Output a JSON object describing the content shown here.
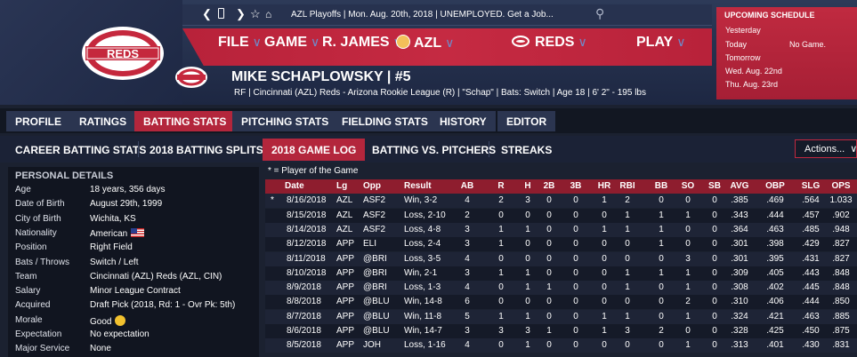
{
  "topbar": {
    "status": "AZL Playoffs  |  Mon. Aug. 20th, 2018  |  UNEMPLOYED. Get a Job..."
  },
  "menu": {
    "file": "FILE",
    "game": "GAME",
    "manager": "R. JAMES",
    "league": "AZL",
    "team": "REDS",
    "play": "PLAY"
  },
  "logo_text": "REDS",
  "player": {
    "name": "MIKE SCHAPLOWSKY  |  #5",
    "info": "RF | Cincinnati (AZL) Reds - Arizona Rookie League (R) | \"Schap\" | Bats: Switch | Age 18 | 6' 2\" - 195 lbs"
  },
  "schedule": {
    "title": "UPCOMING SCHEDULE",
    "rows": [
      "Yesterday",
      "Today",
      "Tomorrow",
      "Wed. Aug. 22nd",
      "Thu. Aug. 23rd"
    ],
    "today_result": "No Game."
  },
  "tabs_main": [
    "PROFILE",
    "RATINGS",
    "BATTING STATS",
    "PITCHING STATS",
    "FIELDING STATS",
    "HISTORY",
    "EDITOR"
  ],
  "tabs_sub": [
    "CAREER BATTING STATS",
    "2018 BATTING SPLITS",
    "2018 GAME LOG",
    "BATTING VS. PITCHERS",
    "STREAKS"
  ],
  "actions_label": "Actions...",
  "details": {
    "title": "PERSONAL DETAILS",
    "rows": [
      {
        "label": "Age",
        "value": "18 years, 356 days"
      },
      {
        "label": "Date of Birth",
        "value": "August 29th, 1999"
      },
      {
        "label": "City of Birth",
        "value": "Wichita, KS"
      },
      {
        "label": "Nationality",
        "value": "American"
      },
      {
        "label": "Position",
        "value": "Right Field"
      },
      {
        "label": "Bats / Throws",
        "value": "Switch / Left"
      },
      {
        "label": "Team",
        "value": "Cincinnati (AZL) Reds (AZL, CIN)"
      },
      {
        "label": "Salary",
        "value": "Minor League Contract"
      },
      {
        "label": "Acquired",
        "value": "Draft Pick (2018, Rd: 1 - Ovr Pk: 5th)"
      },
      {
        "label": "Morale",
        "value": "Good"
      },
      {
        "label": "Expectation",
        "value": "No expectation"
      },
      {
        "label": "Major Service",
        "value": "None"
      }
    ]
  },
  "log": {
    "legend": "* = Player of the Game",
    "columns": [
      "Date",
      "Lg",
      "Opp",
      "Result",
      "AB",
      "R",
      "H",
      "2B",
      "3B",
      "HR",
      "RBI",
      "BB",
      "SO",
      "SB",
      "AVG",
      "OBP",
      "SLG",
      "OPS"
    ],
    "rows": [
      [
        "8/16/2018",
        "AZL",
        "ASF2",
        "Win, 3-2",
        "4",
        "2",
        "3",
        "0",
        "0",
        "1",
        "2",
        "0",
        "0",
        "0",
        ".385",
        ".469",
        ".564",
        "1.033"
      ],
      [
        "8/15/2018",
        "AZL",
        "ASF2",
        "Loss, 2-10",
        "2",
        "0",
        "0",
        "0",
        "0",
        "0",
        "1",
        "1",
        "1",
        "0",
        ".343",
        ".444",
        ".457",
        ".902"
      ],
      [
        "8/14/2018",
        "AZL",
        "ASF2",
        "Loss, 4-8",
        "3",
        "1",
        "1",
        "0",
        "0",
        "1",
        "1",
        "1",
        "0",
        "0",
        ".364",
        ".463",
        ".485",
        ".948"
      ],
      [
        "8/12/2018",
        "APP",
        "ELI",
        "Loss, 2-4",
        "3",
        "1",
        "0",
        "0",
        "0",
        "0",
        "0",
        "1",
        "0",
        "0",
        ".301",
        ".398",
        ".429",
        ".827"
      ],
      [
        "8/11/2018",
        "APP",
        "@BRI",
        "Loss, 3-5",
        "4",
        "0",
        "0",
        "0",
        "0",
        "0",
        "0",
        "0",
        "3",
        "0",
        ".301",
        ".395",
        ".431",
        ".827"
      ],
      [
        "8/10/2018",
        "APP",
        "@BRI",
        "Win, 2-1",
        "3",
        "1",
        "1",
        "0",
        "0",
        "0",
        "1",
        "1",
        "1",
        "0",
        ".309",
        ".405",
        ".443",
        ".848"
      ],
      [
        "8/9/2018",
        "APP",
        "@BRI",
        "Loss, 1-3",
        "4",
        "0",
        "1",
        "1",
        "0",
        "0",
        "1",
        "0",
        "1",
        "0",
        ".308",
        ".402",
        ".445",
        ".848"
      ],
      [
        "8/8/2018",
        "APP",
        "@BLU",
        "Win, 14-8",
        "6",
        "0",
        "0",
        "0",
        "0",
        "0",
        "0",
        "0",
        "2",
        "0",
        ".310",
        ".406",
        ".444",
        ".850"
      ],
      [
        "8/7/2018",
        "APP",
        "@BLU",
        "Win, 11-8",
        "5",
        "1",
        "1",
        "0",
        "0",
        "1",
        "1",
        "0",
        "1",
        "0",
        ".324",
        ".421",
        ".463",
        ".885"
      ],
      [
        "8/6/2018",
        "APP",
        "@BLU",
        "Win, 14-7",
        "3",
        "3",
        "3",
        "1",
        "0",
        "1",
        "3",
        "2",
        "0",
        "0",
        ".328",
        ".425",
        ".450",
        ".875"
      ],
      [
        "8/5/2018",
        "APP",
        "JOH",
        "Loss, 1-16",
        "4",
        "0",
        "1",
        "0",
        "0",
        "0",
        "0",
        "0",
        "1",
        "0",
        ".313",
        ".401",
        ".430",
        ".831"
      ]
    ],
    "player_of_game_row": 0
  }
}
